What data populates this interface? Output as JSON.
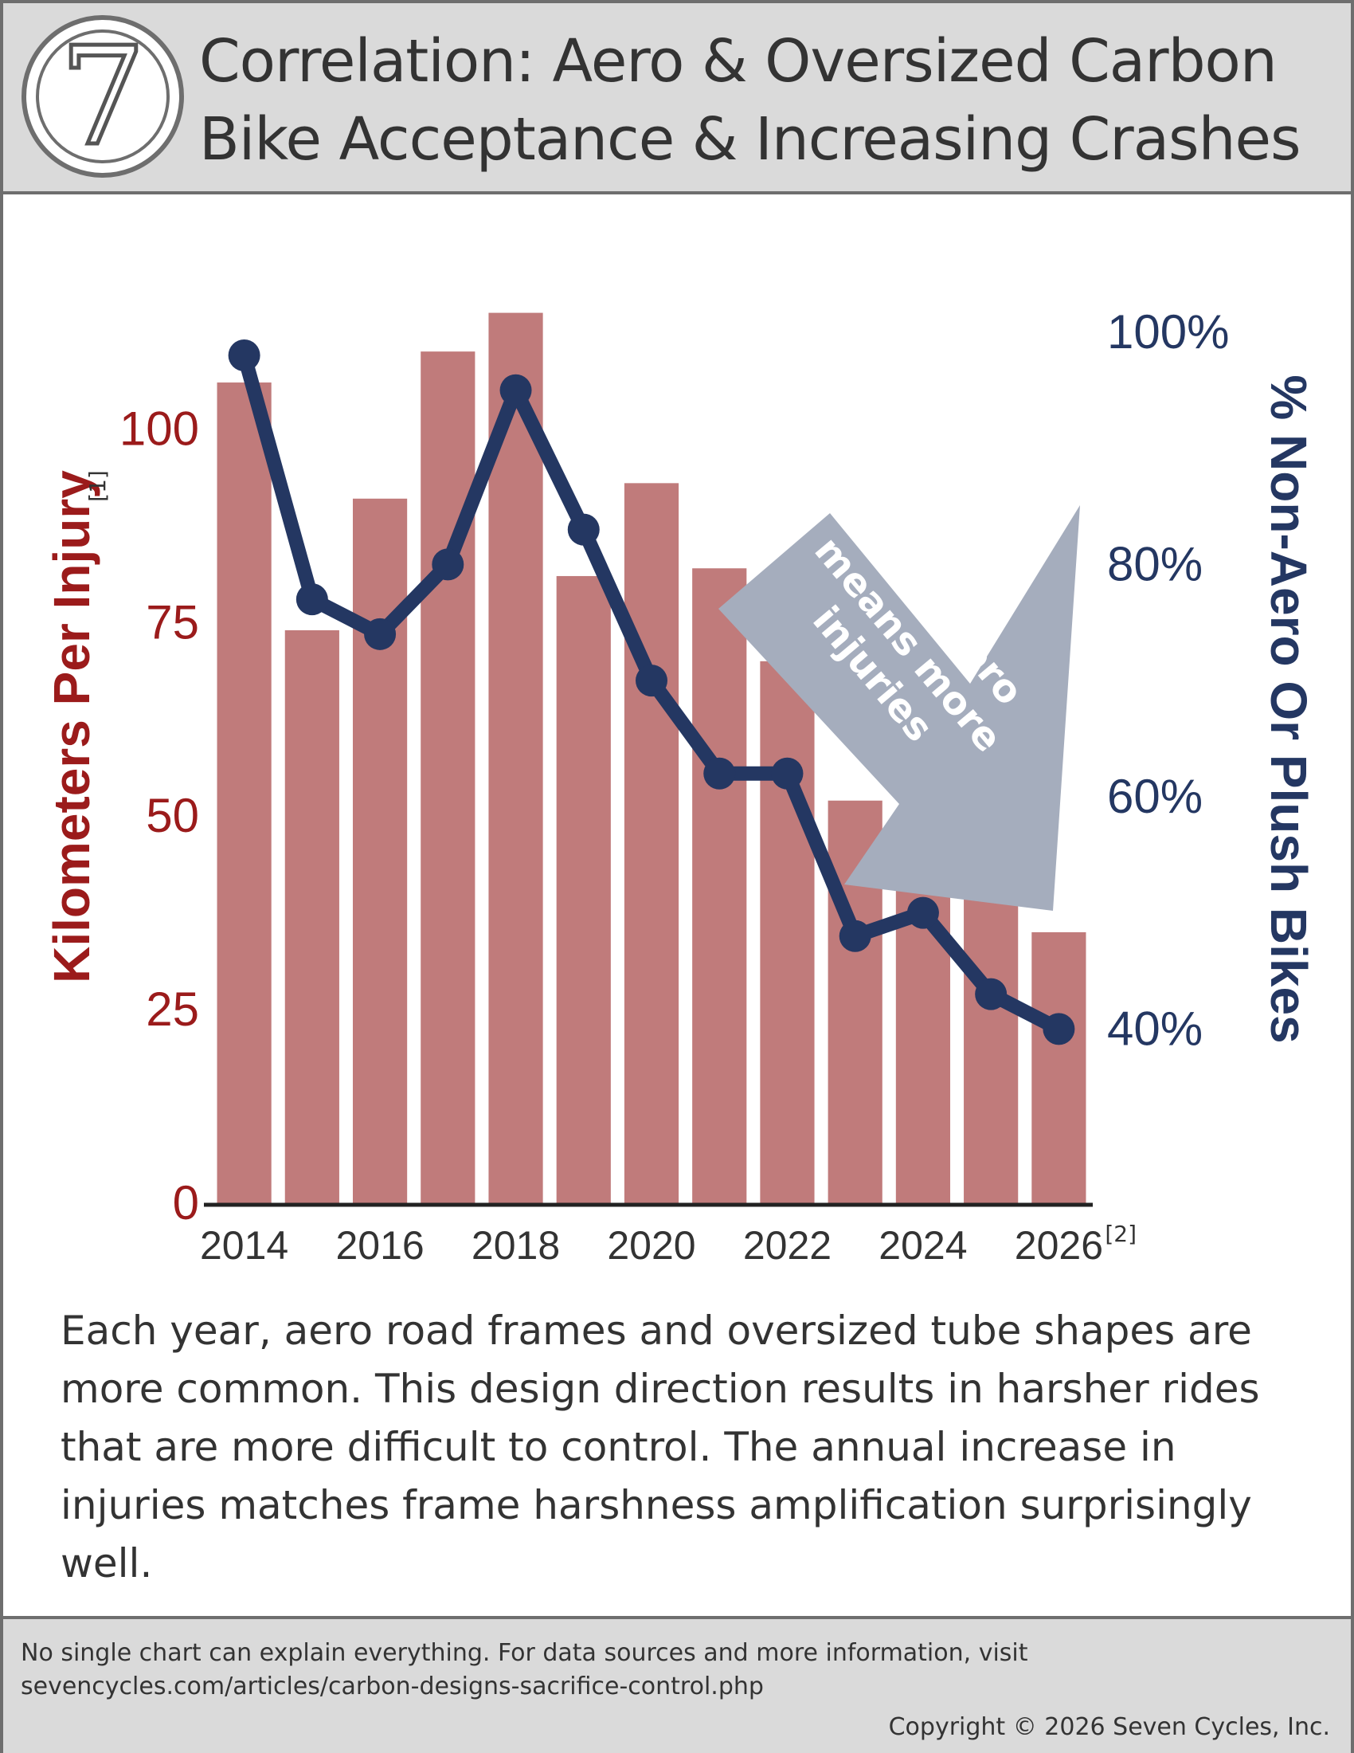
{
  "header": {
    "logo_icon": "seven-cycles-logo-icon",
    "logo_text": "7",
    "title_line1": "Correlation:  Aero & Oversized Carbon",
    "title_line2": "Bike Acceptance & Increasing Crashes"
  },
  "chart_data": {
    "type": "bar",
    "categories": [
      "2014",
      "2015",
      "2016",
      "2017",
      "2018",
      "2019",
      "2020",
      "2021",
      "2022",
      "2023",
      "2024",
      "2025",
      "2026"
    ],
    "x_tick_labels": [
      "2014",
      "2016",
      "2018",
      "2020",
      "2022",
      "2024",
      "2026"
    ],
    "x_label_note": "[2]",
    "series": [
      {
        "type": "bar",
        "axis": "left",
        "color": "#c07b7b",
        "values": [
          106,
          74,
          91,
          110,
          115,
          81,
          93,
          82,
          70,
          52,
          49,
          42,
          35
        ]
      },
      {
        "type": "line",
        "axis": "right",
        "color": "#243762",
        "values": [
          0.98,
          0.77,
          0.74,
          0.8,
          0.95,
          0.83,
          0.7,
          0.62,
          0.62,
          0.48,
          0.5,
          0.43,
          0.4
        ]
      }
    ],
    "y_left": {
      "label": "Kilometers Per Injury",
      "label_note": "[1]",
      "min": 0,
      "max": 120,
      "ticks": [
        0,
        25,
        50,
        75,
        100
      ],
      "tick_labels": [
        "0",
        "25",
        "50",
        "75",
        "100"
      ],
      "color": "#9b1b1b"
    },
    "y_right": {
      "label": "% Non-Aero Or Plush Bikes",
      "min": 0.25,
      "max": 1.05,
      "ticks": [
        0.4,
        0.6,
        0.8,
        1.0
      ],
      "tick_labels": [
        "40%",
        "60%",
        "80%",
        "100%"
      ],
      "color": "#243762"
    },
    "grid": false,
    "legend": "none",
    "annotation": {
      "lines": [
        "more aero",
        "means more",
        "injuries"
      ],
      "arrow_color": "#a5adbd",
      "text_color": "#ffffff"
    }
  },
  "caption": "Each year, aero road frames and oversized tube shapes are more common.  This design direction results in harsher rides that are more difficult to control.  The annual increase in injuries matches frame harshness amplification surprisingly well.",
  "footer": {
    "line1": "No single chart can explain everything.  For data sources and more information, visit",
    "line2": "sevencycles.com/articles/carbon-designs-sacrifice-control.php",
    "copyright": "Copyright © 2026 Seven Cycles, Inc."
  }
}
